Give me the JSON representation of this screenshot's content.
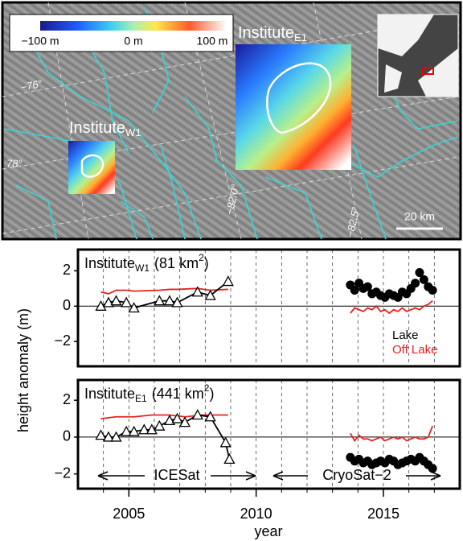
{
  "map": {
    "colorbar": [
      "−100 m",
      "0 m",
      "100 m"
    ],
    "lakes": [
      {
        "name": "Institute",
        "sub": "E1"
      },
      {
        "name": "Institute",
        "sub": "W1"
      }
    ],
    "graticule": [
      "−76°",
      "78°",
      "−82.0°",
      "−82.5°"
    ],
    "scale_bar": "20 km"
  },
  "y_label": "height anomaly (m)",
  "x_label": "year",
  "chart_data": [
    {
      "type": "line",
      "title": {
        "name": "Institute",
        "sub": "W1",
        "area": "(81 km",
        "sup": "2",
        "close": ")"
      },
      "xlim": [
        2003,
        2018
      ],
      "xticks": [
        2005,
        2010,
        2015
      ],
      "xgrid": [
        2004,
        2005,
        2006,
        2007,
        2008,
        2009,
        2010,
        2011,
        2012,
        2013,
        2014,
        2015,
        2016,
        2017
      ],
      "ylim": [
        -3.4,
        3.2
      ],
      "yticks": [
        {
          "value": -2,
          "label": "−2"
        },
        0,
        2
      ],
      "hline": 0,
      "legend": [
        {
          "label": "Lake",
          "color": "#000000"
        },
        {
          "label": "Off Lake",
          "color": "#e8221c"
        }
      ],
      "series": [
        {
          "color": "#e8221c",
          "line": true,
          "marker": null,
          "x": [
            2003.9,
            2004.2,
            2004.5,
            2004.9,
            2005.2,
            2006.2,
            2006.6,
            2006.9,
            2007.7,
            2008.2,
            2008.9
          ],
          "values": [
            0.8,
            0.7,
            0.9,
            0.9,
            0.85,
            0.9,
            0.95,
            0.95,
            1.0,
            0.9,
            0.95
          ]
        },
        {
          "color": "#000000",
          "line": true,
          "marker": "triangle",
          "x": [
            2003.9,
            2004.2,
            2004.5,
            2004.9,
            2005.2,
            2006.2,
            2006.6,
            2006.9,
            2007.7,
            2008.2,
            2008.9
          ],
          "values": [
            0.0,
            0.2,
            0.3,
            0.2,
            -0.1,
            0.3,
            0.3,
            0.2,
            0.8,
            0.6,
            1.4
          ]
        },
        {
          "color": "#e8221c",
          "line": true,
          "marker": null,
          "x": [
            2013.7,
            2013.87,
            2014.04,
            2014.21,
            2014.38,
            2014.55,
            2014.72,
            2014.89,
            2015.06,
            2015.23,
            2015.4,
            2015.57,
            2015.74,
            2015.91,
            2016.08,
            2016.25,
            2016.42,
            2016.59,
            2016.76,
            2016.93
          ],
          "values": [
            -0.4,
            -0.1,
            -0.2,
            -0.3,
            -0.1,
            -0.2,
            0.0,
            -0.3,
            -0.2,
            -0.4,
            -0.2,
            -0.3,
            -0.1,
            -0.3,
            -0.2,
            -0.1,
            -0.2,
            0.0,
            0.1,
            0.3
          ]
        },
        {
          "color": "#000000",
          "line": false,
          "marker": "circle",
          "x": [
            2013.7,
            2013.87,
            2014.04,
            2014.21,
            2014.38,
            2014.55,
            2014.72,
            2014.89,
            2015.06,
            2015.23,
            2015.4,
            2015.57,
            2015.74,
            2015.91,
            2016.08,
            2016.25,
            2016.42,
            2016.59,
            2016.76,
            2016.93
          ],
          "values": [
            1.2,
            0.9,
            1.3,
            1.0,
            1.1,
            0.7,
            0.8,
            0.6,
            0.5,
            0.7,
            0.6,
            0.5,
            0.8,
            0.7,
            1.0,
            1.3,
            1.9,
            1.5,
            1.1,
            0.9
          ]
        }
      ]
    },
    {
      "type": "line",
      "title": {
        "name": "Institute",
        "sub": "E1",
        "area": "(441 km",
        "sup": "2",
        "close": ")"
      },
      "xlim": [
        2003,
        2018
      ],
      "xticks": [
        2005,
        2010,
        2015
      ],
      "xgrid": [
        2004,
        2005,
        2006,
        2007,
        2008,
        2009,
        2010,
        2011,
        2012,
        2013,
        2014,
        2015,
        2016,
        2017
      ],
      "ylim": [
        -2.8,
        3.1
      ],
      "yticks": [
        {
          "value": -2,
          "label": "−2"
        },
        0,
        2
      ],
      "hline": 0,
      "annotations": [
        "ICESat",
        "CryoSat−2"
      ],
      "series": [
        {
          "color": "#e8221c",
          "line": true,
          "marker": null,
          "x": [
            2003.9,
            2004.5,
            2005.2,
            2005.9,
            2006.6,
            2007.2,
            2007.9,
            2008.9
          ],
          "values": [
            1.0,
            1.1,
            1.1,
            1.2,
            1.2,
            1.1,
            1.2,
            1.2
          ]
        },
        {
          "color": "#000000",
          "line": true,
          "marker": "triangle",
          "x": [
            2003.9,
            2004.2,
            2004.5,
            2004.9,
            2005.2,
            2005.6,
            2005.9,
            2006.2,
            2006.6,
            2006.9,
            2007.2,
            2007.7,
            2008.2,
            2008.8,
            2008.95
          ],
          "values": [
            0.1,
            0.0,
            0.0,
            0.3,
            0.3,
            0.4,
            0.4,
            0.6,
            0.9,
            1.0,
            0.8,
            1.2,
            1.1,
            -0.3,
            -1.2
          ]
        },
        {
          "color": "#e8221c",
          "line": true,
          "marker": null,
          "x": [
            2013.7,
            2013.87,
            2014.04,
            2014.21,
            2014.38,
            2014.55,
            2014.72,
            2014.89,
            2015.06,
            2015.23,
            2015.4,
            2015.57,
            2015.74,
            2015.91,
            2016.08,
            2016.25,
            2016.42,
            2016.59,
            2016.76,
            2016.93
          ],
          "values": [
            0.2,
            -0.2,
            0.1,
            -0.1,
            -0.1,
            -0.2,
            -0.1,
            0.0,
            -0.2,
            -0.1,
            0.0,
            -0.1,
            0.0,
            -0.2,
            -0.1,
            0.0,
            -0.1,
            -0.1,
            0.0,
            0.6
          ]
        },
        {
          "color": "#000000",
          "line": false,
          "marker": "circle",
          "x": [
            2013.7,
            2013.87,
            2014.04,
            2014.21,
            2014.38,
            2014.55,
            2014.72,
            2014.89,
            2015.06,
            2015.23,
            2015.4,
            2015.57,
            2015.74,
            2015.91,
            2016.08,
            2016.25,
            2016.42,
            2016.59,
            2016.76,
            2016.93
          ],
          "values": [
            -1.1,
            -1.3,
            -1.2,
            -1.4,
            -1.3,
            -1.5,
            -1.4,
            -1.3,
            -1.4,
            -1.2,
            -1.3,
            -1.5,
            -1.4,
            -1.3,
            -1.2,
            -1.3,
            -1.1,
            -1.3,
            -1.5,
            -1.7
          ]
        }
      ]
    }
  ]
}
